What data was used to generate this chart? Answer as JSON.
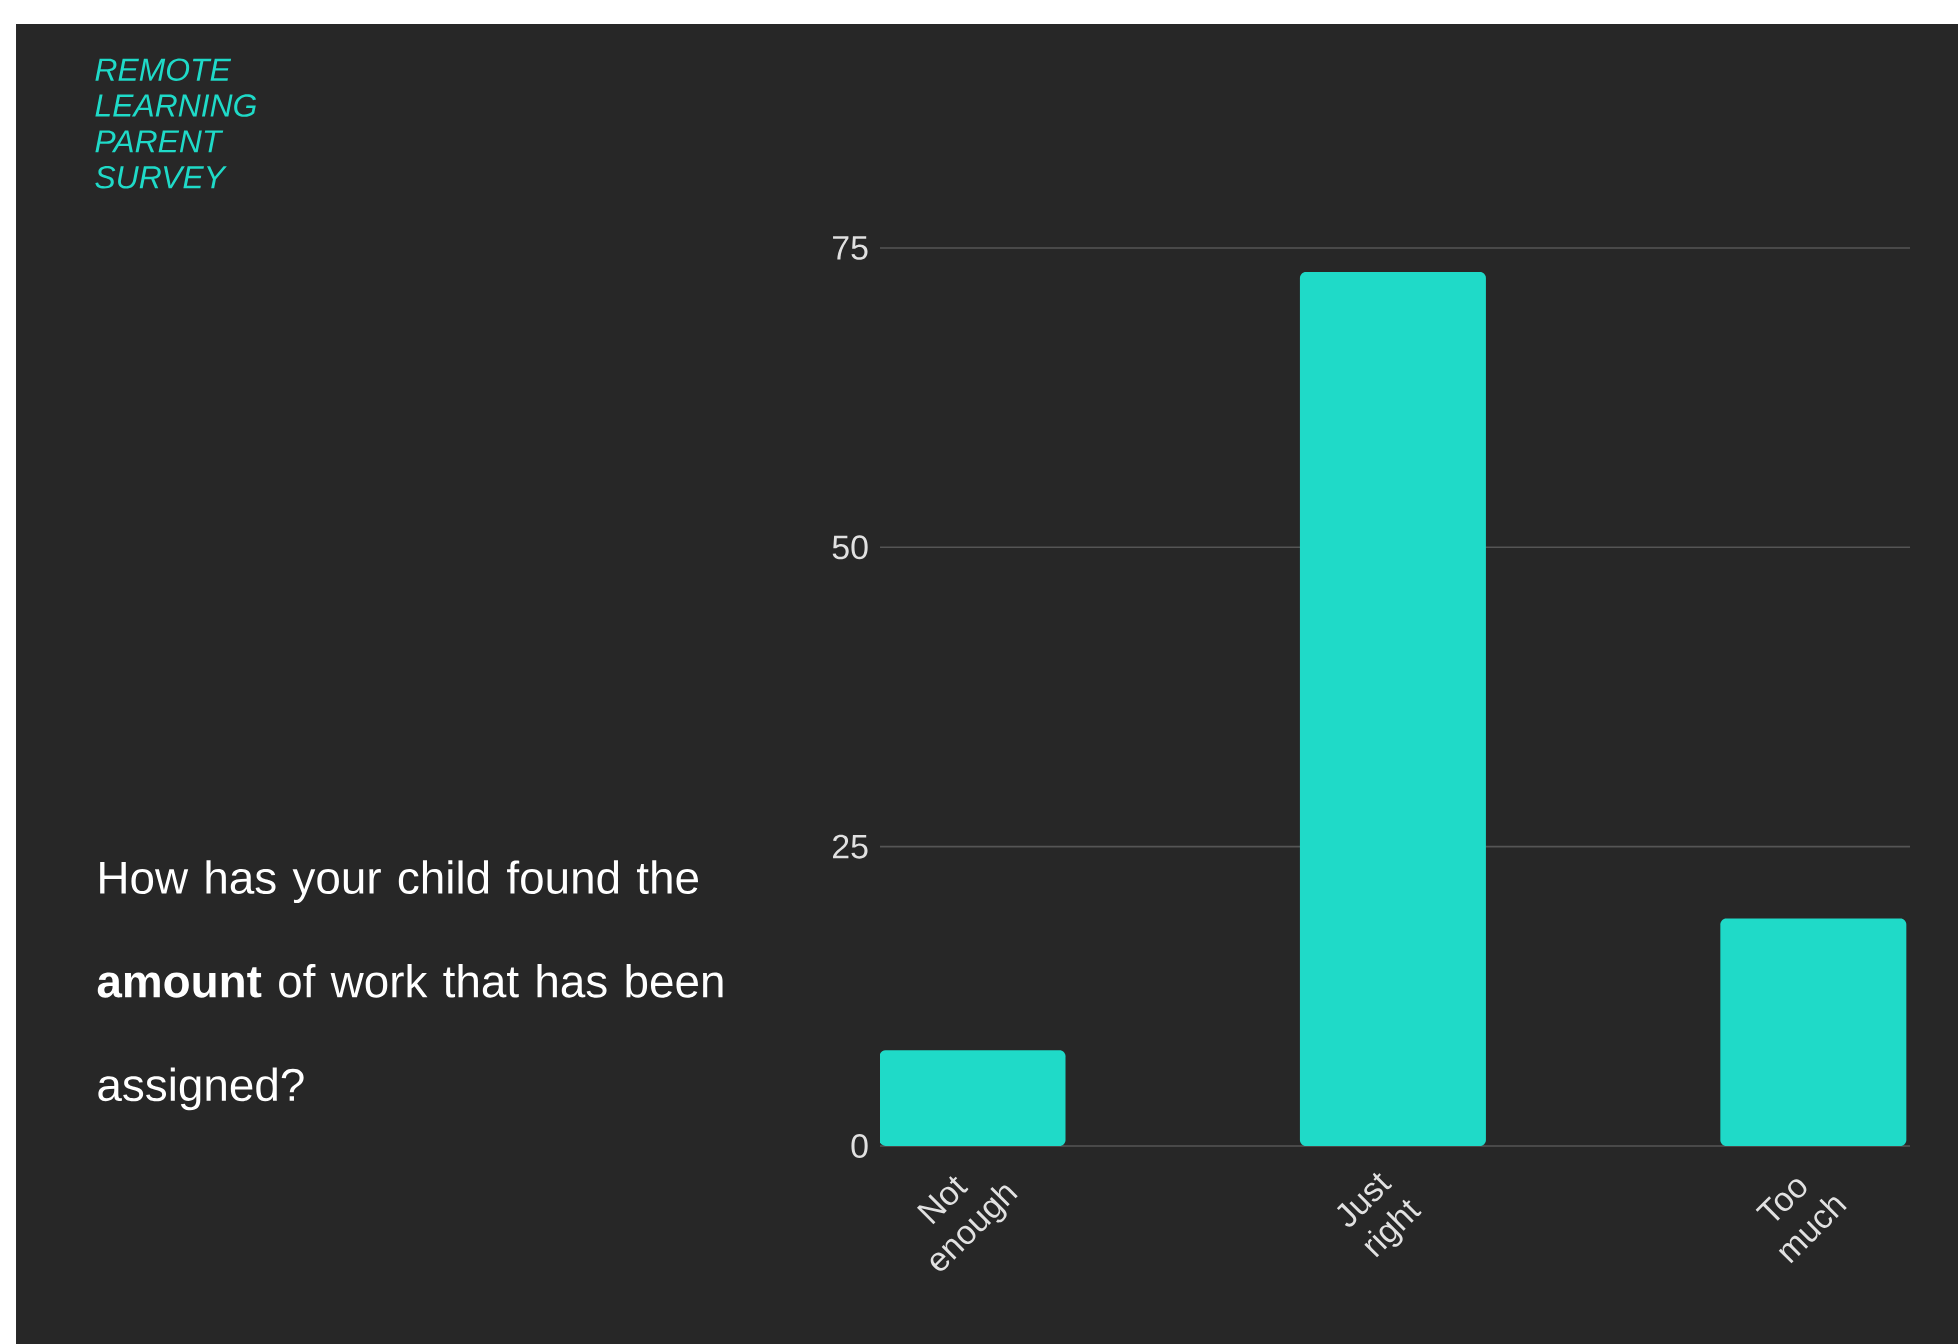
{
  "chart_data": {
    "type": "bar",
    "title": "REMOTE LEARNING PARENT SURVEY",
    "subtitle": "How has your child found the **amount** of work that has been assigned?",
    "categories": [
      "Not enough",
      "Just right",
      "Too much"
    ],
    "values": [
      8,
      73,
      19
    ],
    "color": "#1fdac8",
    "ylim": [
      0,
      75
    ],
    "yticks": [
      0,
      25,
      50,
      75
    ],
    "grid": "y"
  }
}
